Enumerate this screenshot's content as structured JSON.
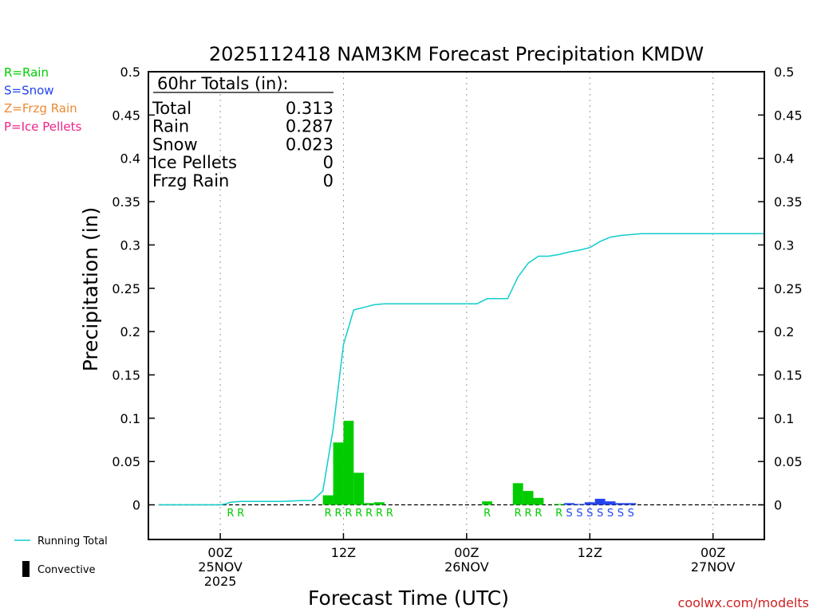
{
  "chart_data": {
    "type": "bar",
    "title": "2025112418 NAM3KM Forecast Precipitation KMDW",
    "xlabel": "Forecast Time (UTC)",
    "ylabel": "Precipitation (in)",
    "ylim": [
      -0.04,
      0.5
    ],
    "yticks": [
      0,
      0.05,
      0.1,
      0.15,
      0.2,
      0.25,
      0.3,
      0.35,
      0.4,
      0.45,
      0.5
    ],
    "ytick_labels": [
      "0",
      "0.05",
      "0.1",
      "0.15",
      "0.2",
      "0.25",
      "0.3",
      "0.35",
      "0.4",
      "0.45",
      "0.5"
    ],
    "x_unit": "hours since 2025-11-24 18Z",
    "xlim": [
      -1,
      59
    ],
    "xticks": [
      {
        "hour": 6,
        "lines": [
          "00Z",
          "25NOV",
          "2025"
        ]
      },
      {
        "hour": 18,
        "lines": [
          "12Z"
        ]
      },
      {
        "hour": 30,
        "lines": [
          "00Z",
          "26NOV"
        ]
      },
      {
        "hour": 42,
        "lines": [
          "12Z"
        ]
      },
      {
        "hour": 54,
        "lines": [
          "00Z",
          "27NOV"
        ]
      }
    ],
    "gridlines_x_hours": [
      6,
      18,
      30,
      42,
      54
    ],
    "hourly_precip": [
      {
        "hour": 16.5,
        "value": 0.011,
        "type": "R",
        "color": "#00cc00"
      },
      {
        "hour": 17.5,
        "value": 0.072,
        "type": "R",
        "color": "#00cc00"
      },
      {
        "hour": 18.5,
        "value": 0.097,
        "type": "R",
        "color": "#00cc00"
      },
      {
        "hour": 19.5,
        "value": 0.037,
        "type": "R",
        "color": "#00cc00"
      },
      {
        "hour": 20.5,
        "value": 0.002,
        "type": "R",
        "color": "#00cc00"
      },
      {
        "hour": 21.5,
        "value": 0.003,
        "type": "R",
        "color": "#00cc00"
      },
      {
        "hour": 32.0,
        "value": 0.004,
        "type": "R",
        "color": "#00cc00"
      },
      {
        "hour": 35.0,
        "value": 0.025,
        "type": "R",
        "color": "#00cc00"
      },
      {
        "hour": 36.0,
        "value": 0.016,
        "type": "R",
        "color": "#00cc00"
      },
      {
        "hour": 37.0,
        "value": 0.008,
        "type": "R",
        "color": "#00cc00"
      },
      {
        "hour": 39.0,
        "value": 0.001,
        "type": "R",
        "color": "#00cc00"
      },
      {
        "hour": 40.0,
        "value": 0.002,
        "type": "S",
        "color": "#2244ee"
      },
      {
        "hour": 41.0,
        "value": 0.001,
        "type": "S",
        "color": "#2244ee"
      },
      {
        "hour": 42.0,
        "value": 0.003,
        "type": "S",
        "color": "#2244ee"
      },
      {
        "hour": 43.0,
        "value": 0.007,
        "type": "S",
        "color": "#2244ee"
      },
      {
        "hour": 44.0,
        "value": 0.004,
        "type": "S",
        "color": "#2244ee"
      },
      {
        "hour": 45.0,
        "value": 0.002,
        "type": "S",
        "color": "#2244ee"
      },
      {
        "hour": 46.0,
        "value": 0.002,
        "type": "S",
        "color": "#2244ee"
      }
    ],
    "running_total": {
      "name": "Running Total",
      "color": "#11cccc",
      "x": [
        0,
        6,
        6.5,
        7,
        8,
        10,
        12,
        14,
        15,
        16,
        17,
        18,
        19,
        20,
        21,
        22,
        23,
        24,
        26,
        28,
        30,
        31,
        32,
        33,
        34,
        35,
        36,
        37,
        38,
        39,
        40,
        41,
        42,
        43,
        44,
        45,
        46,
        47,
        48,
        50,
        52,
        54,
        56,
        58,
        59
      ],
      "y": [
        0,
        0,
        0.001,
        0.003,
        0.004,
        0.004,
        0.004,
        0.005,
        0.005,
        0.016,
        0.088,
        0.185,
        0.225,
        0.228,
        0.231,
        0.232,
        0.232,
        0.232,
        0.232,
        0.232,
        0.232,
        0.232,
        0.238,
        0.238,
        0.238,
        0.263,
        0.279,
        0.287,
        0.287,
        0.289,
        0.292,
        0.294,
        0.297,
        0.304,
        0.309,
        0.311,
        0.312,
        0.313,
        0.313,
        0.313,
        0.313,
        0.313,
        0.313,
        0.313,
        0.313
      ]
    },
    "precip_type_markers": [
      {
        "hour": 7.0,
        "label": "R",
        "color": "#00cc00"
      },
      {
        "hour": 8.0,
        "label": "R",
        "color": "#00cc00"
      },
      {
        "hour": 16.5,
        "label": "R",
        "color": "#00cc00"
      },
      {
        "hour": 17.5,
        "label": "R",
        "color": "#00cc00"
      },
      {
        "hour": 18.5,
        "label": "R",
        "color": "#00cc00"
      },
      {
        "hour": 19.5,
        "label": "R",
        "color": "#00cc00"
      },
      {
        "hour": 20.5,
        "label": "R",
        "color": "#00cc00"
      },
      {
        "hour": 21.5,
        "label": "R",
        "color": "#00cc00"
      },
      {
        "hour": 22.5,
        "label": "R",
        "color": "#00cc00"
      },
      {
        "hour": 32.0,
        "label": "R",
        "color": "#00cc00"
      },
      {
        "hour": 35.0,
        "label": "R",
        "color": "#00cc00"
      },
      {
        "hour": 36.0,
        "label": "R",
        "color": "#00cc00"
      },
      {
        "hour": 37.0,
        "label": "R",
        "color": "#00cc00"
      },
      {
        "hour": 39.0,
        "label": "R",
        "color": "#00cc00"
      },
      {
        "hour": 40.0,
        "label": "S",
        "color": "#2244ee"
      },
      {
        "hour": 41.0,
        "label": "S",
        "color": "#2244ee"
      },
      {
        "hour": 42.0,
        "label": "S",
        "color": "#2244ee"
      },
      {
        "hour": 43.0,
        "label": "S",
        "color": "#2244ee"
      },
      {
        "hour": 44.0,
        "label": "S",
        "color": "#2244ee"
      },
      {
        "hour": 45.0,
        "label": "S",
        "color": "#2244ee"
      },
      {
        "hour": 46.0,
        "label": "S",
        "color": "#2244ee"
      }
    ],
    "totals_box": {
      "header": "60hr Totals (in):",
      "rows": [
        {
          "label": "Total",
          "value": "0.313"
        },
        {
          "label": "Rain",
          "value": "0.287"
        },
        {
          "label": "Snow",
          "value": "0.023"
        },
        {
          "label": "Ice Pellets",
          "value": "0"
        },
        {
          "label": "Frzg Rain",
          "value": "0"
        }
      ]
    },
    "type_legend": [
      {
        "text": "R=Rain",
        "color": "#00cc00"
      },
      {
        "text": "S=Snow",
        "color": "#2244ee"
      },
      {
        "text": "Z=Frzg Rain",
        "color": "#ee8833"
      },
      {
        "text": "P=Ice Pellets",
        "color": "#ee2288"
      }
    ],
    "series_legend": [
      {
        "text": "Running Total",
        "kind": "line",
        "color": "#11cccc"
      },
      {
        "text": "Convective",
        "kind": "bar",
        "color": "#000000"
      }
    ],
    "credit": "coolwx.com/modelts"
  }
}
